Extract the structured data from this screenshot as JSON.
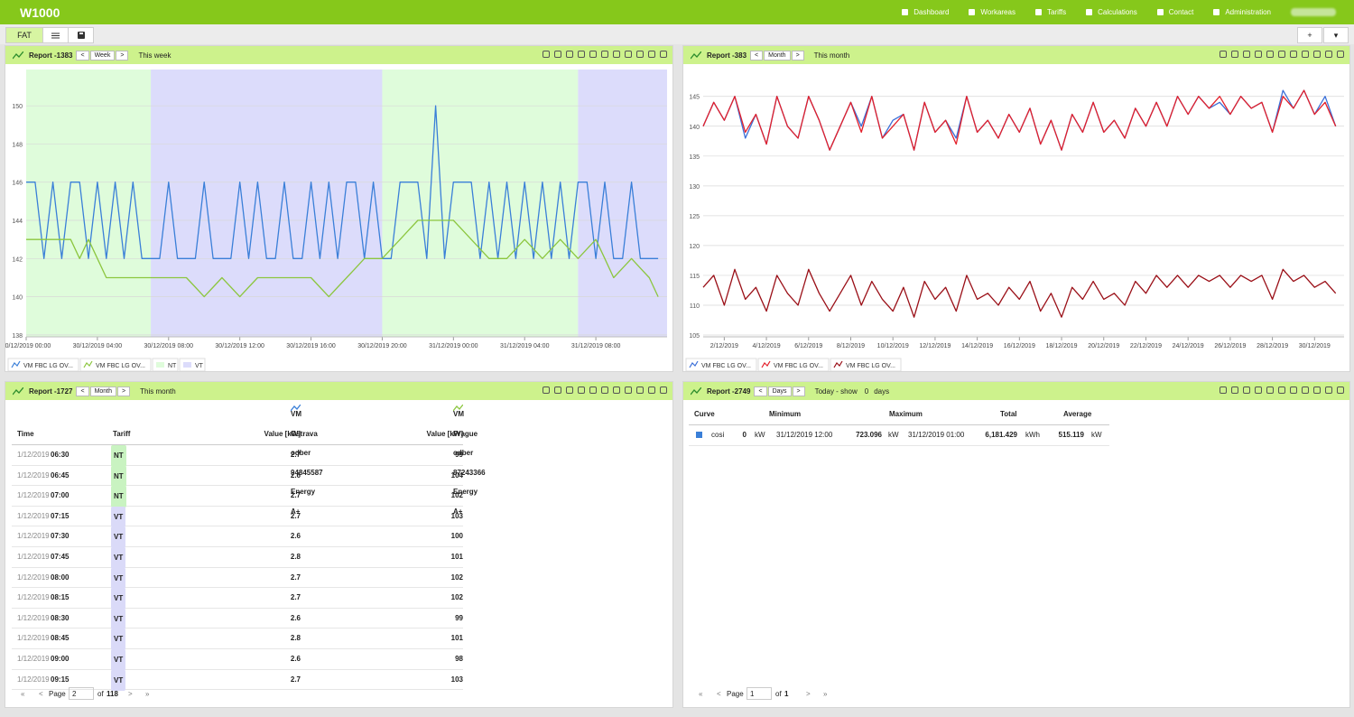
{
  "header": {
    "title": "W1000",
    "nav": [
      "Dashboard",
      "Workareas",
      "Tariffs",
      "Calculations",
      "Contact",
      "Administration"
    ]
  },
  "toolbar": {
    "tab": "FAT",
    "buttons": [
      "+",
      "▾"
    ]
  },
  "panels": [
    {
      "title": "Report -1383",
      "prev": "<",
      "period": "Week",
      "next": ">",
      "range": "This week"
    },
    {
      "title": "Report -383",
      "prev": "<",
      "period": "Month",
      "next": ">",
      "range": "This month"
    },
    {
      "title": "Report -1727",
      "prev": "<",
      "period": "Month",
      "next": ">",
      "range": "This month"
    },
    {
      "title": "Report -2749",
      "prev": "<",
      "period": "Days",
      "next": ">",
      "range": "Today - show",
      "count": "0",
      "unit": "days"
    }
  ],
  "chart_data": [
    {
      "type": "line",
      "xlim": [
        0,
        36
      ],
      "ylim": [
        137.9,
        151.9
      ],
      "yticks": [
        138,
        140,
        142,
        144,
        146,
        148,
        150
      ],
      "xticks": [
        {
          "value": 0,
          "label": "30/12/2019 00:00"
        },
        {
          "value": 4,
          "label": "30/12/2019 04:00"
        },
        {
          "value": 8,
          "label": "30/12/2019 08:00"
        },
        {
          "value": 12,
          "label": "30/12/2019 12:00"
        },
        {
          "value": 16,
          "label": "30/12/2019 16:00"
        },
        {
          "value": 20,
          "label": "30/12/2019 20:00"
        },
        {
          "value": 24,
          "label": "31/12/2019 00:00"
        },
        {
          "value": 28,
          "label": "31/12/2019 04:00"
        },
        {
          "value": 32,
          "label": "31/12/2019 08:00"
        }
      ],
      "grid": true,
      "bands": [
        {
          "from": 0,
          "to": 7,
          "color": "#dffcdb"
        },
        {
          "from": 7,
          "to": 20,
          "color": "#dcdcfb"
        },
        {
          "from": 20,
          "to": 31,
          "color": "#dffcdb"
        },
        {
          "from": 31,
          "to": 36,
          "color": "#dcdcfb"
        }
      ],
      "tariffs": [
        {
          "name": "NT",
          "color": "#dffcdb"
        },
        {
          "name": "VT",
          "color": "#dcdcfb"
        }
      ],
      "x": [
        0,
        0.5,
        1,
        1.5,
        2,
        2.5,
        3,
        3.5,
        4,
        4.5,
        5,
        5.5,
        6,
        6.5,
        7,
        7.5,
        8,
        8.5,
        9,
        9.5,
        10,
        10.5,
        11,
        11.5,
        12,
        12.5,
        13,
        13.5,
        14,
        14.5,
        15,
        15.5,
        16,
        16.5,
        17,
        17.5,
        18,
        18.5,
        19,
        19.5,
        20,
        20.5,
        21,
        21.5,
        22,
        22.5,
        23,
        23.5,
        24,
        24.5,
        25,
        25.5,
        26,
        26.5,
        27,
        27.5,
        28,
        28.5,
        29,
        29.5,
        30,
        30.5,
        31,
        31.5,
        32,
        32.5,
        33,
        33.5,
        34,
        34.5,
        35,
        35.5
      ],
      "series": [
        {
          "name": "VM FBC LG OV...",
          "color": "#3a7fd8",
          "values": [
            146,
            146,
            142,
            146,
            142,
            146,
            146,
            142,
            146,
            142,
            146,
            142,
            146,
            142,
            142,
            142,
            146,
            142,
            142,
            142,
            146,
            142,
            142,
            142,
            146,
            142,
            146,
            142,
            142,
            146,
            142,
            142,
            146,
            142,
            146,
            142,
            146,
            146,
            142,
            146,
            142,
            142,
            146,
            146,
            146,
            142,
            150,
            142,
            146,
            146,
            146,
            142,
            146,
            142,
            146,
            142,
            146,
            142,
            146,
            142,
            146,
            142,
            146,
            146,
            142,
            146,
            142,
            142,
            146,
            142,
            142,
            142
          ]
        },
        {
          "name": "VM FBC LG OV...",
          "color": "#8cc63f",
          "values": [
            143,
            143,
            143,
            143,
            143,
            143,
            142,
            143,
            142,
            141,
            141,
            141,
            141,
            141,
            141,
            141,
            141,
            141,
            141,
            140.5,
            140,
            140.5,
            141,
            140.5,
            140,
            140.5,
            141,
            141,
            141,
            141,
            141,
            141,
            141,
            140.5,
            140,
            140.5,
            141,
            141.5,
            142,
            142,
            142,
            142.5,
            143,
            143.5,
            144,
            144,
            144,
            144,
            144,
            143.5,
            143,
            142.5,
            142,
            142,
            142,
            142.5,
            143,
            142.5,
            142,
            142.5,
            143,
            142.5,
            142,
            142.5,
            143,
            142,
            141,
            141.5,
            142,
            141.5,
            141,
            140
          ]
        }
      ],
      "legend": "bottom-left"
    },
    {
      "type": "line",
      "xlim": [
        1,
        31.4
      ],
      "ylim": [
        104.7,
        149.5
      ],
      "yticks": [
        105,
        110,
        115,
        120,
        125,
        130,
        135,
        140,
        145
      ],
      "xticks": [
        {
          "value": 2,
          "label": "2/12/2019"
        },
        {
          "value": 4,
          "label": "4/12/2019"
        },
        {
          "value": 6,
          "label": "6/12/2019"
        },
        {
          "value": 8,
          "label": "8/12/2019"
        },
        {
          "value": 10,
          "label": "10/12/2019"
        },
        {
          "value": 12,
          "label": "12/12/2019"
        },
        {
          "value": 14,
          "label": "14/12/2019"
        },
        {
          "value": 16,
          "label": "16/12/2019"
        },
        {
          "value": 18,
          "label": "18/12/2019"
        },
        {
          "value": 20,
          "label": "20/12/2019"
        },
        {
          "value": 22,
          "label": "22/12/2019"
        },
        {
          "value": 24,
          "label": "24/12/2019"
        },
        {
          "value": 26,
          "label": "26/12/2019"
        },
        {
          "value": 28,
          "label": "28/12/2019"
        },
        {
          "value": 30,
          "label": "30/12/2019"
        }
      ],
      "grid": true,
      "x": [
        1,
        1.5,
        2,
        2.5,
        3,
        3.5,
        4,
        4.5,
        5,
        5.5,
        6,
        6.5,
        7,
        7.5,
        8,
        8.5,
        9,
        9.5,
        10,
        10.5,
        11,
        11.5,
        12,
        12.5,
        13,
        13.5,
        14,
        14.5,
        15,
        15.5,
        16,
        16.5,
        17,
        17.5,
        18,
        18.5,
        19,
        19.5,
        20,
        20.5,
        21,
        21.5,
        22,
        22.5,
        23,
        23.5,
        24,
        24.5,
        25,
        25.5,
        26,
        26.5,
        27,
        27.5,
        28,
        28.5,
        29,
        29.5,
        30,
        30.5,
        31
      ],
      "series": [
        {
          "name": "VM FBC LG OV...",
          "color": "#3a6fd8",
          "values": [
            140,
            144,
            141,
            145,
            138,
            142,
            137,
            145,
            140,
            138,
            145,
            141,
            136,
            140,
            144,
            140,
            145,
            138,
            141,
            142,
            136,
            144,
            139,
            141,
            138,
            145,
            139,
            141,
            138,
            142,
            139,
            143,
            137,
            141,
            136,
            142,
            139,
            144,
            139,
            141,
            138,
            143,
            140,
            144,
            140,
            145,
            142,
            145,
            143,
            144,
            142,
            145,
            143,
            144,
            139,
            146,
            143,
            146,
            142,
            145,
            140
          ]
        },
        {
          "name": "VM FBC LG OV...",
          "color": "#e3202b",
          "values": [
            140,
            144,
            141,
            145,
            139,
            142,
            137,
            145,
            140,
            138,
            145,
            141,
            136,
            140,
            144,
            139,
            145,
            138,
            140,
            142,
            136,
            144,
            139,
            141,
            137,
            145,
            139,
            141,
            138,
            142,
            139,
            143,
            137,
            141,
            136,
            142,
            139,
            144,
            139,
            141,
            138,
            143,
            140,
            144,
            140,
            145,
            142,
            145,
            143,
            145,
            142,
            145,
            143,
            144,
            139,
            145,
            143,
            146,
            142,
            144,
            140
          ]
        },
        {
          "name": "VM FBC LG OV...",
          "color": "#9a0f17",
          "values": [
            113,
            115,
            110,
            116,
            111,
            113,
            109,
            115,
            112,
            110,
            116,
            112,
            109,
            112,
            115,
            110,
            114,
            111,
            109,
            113,
            108,
            114,
            111,
            113,
            109,
            115,
            111,
            112,
            110,
            113,
            111,
            114,
            109,
            112,
            108,
            113,
            111,
            114,
            111,
            112,
            110,
            114,
            112,
            115,
            113,
            115,
            113,
            115,
            114,
            115,
            113,
            115,
            114,
            115,
            111,
            116,
            114,
            115,
            113,
            114,
            112
          ]
        }
      ],
      "legend": "bottom-left"
    }
  ],
  "table": {
    "series_headers": [
      "VM Ostrava odber 94845587 Energy A+",
      "VM Prague odber 87243366 Energy A+"
    ],
    "columns": [
      "Time",
      "Tariff",
      "Value [kW]",
      "Value [kW]"
    ],
    "rows": [
      [
        "1/12/2019",
        "06:30",
        "NT",
        "2.7",
        "99"
      ],
      [
        "1/12/2019",
        "06:45",
        "NT",
        "2.6",
        "104"
      ],
      [
        "1/12/2019",
        "07:00",
        "NT",
        "2.7",
        "102"
      ],
      [
        "1/12/2019",
        "07:15",
        "VT",
        "2.7",
        "103"
      ],
      [
        "1/12/2019",
        "07:30",
        "VT",
        "2.6",
        "100"
      ],
      [
        "1/12/2019",
        "07:45",
        "VT",
        "2.8",
        "101"
      ],
      [
        "1/12/2019",
        "08:00",
        "VT",
        "2.7",
        "102"
      ],
      [
        "1/12/2019",
        "08:15",
        "VT",
        "2.7",
        "102"
      ],
      [
        "1/12/2019",
        "08:30",
        "VT",
        "2.6",
        "99"
      ],
      [
        "1/12/2019",
        "08:45",
        "VT",
        "2.8",
        "101"
      ],
      [
        "1/12/2019",
        "09:00",
        "VT",
        "2.6",
        "98"
      ],
      [
        "1/12/2019",
        "09:15",
        "VT",
        "2.7",
        "103"
      ]
    ],
    "pager": {
      "first": "«",
      "prev": "<",
      "label": "Page",
      "page": "2",
      "of": "of",
      "total": "118",
      "next": ">",
      "last": "»"
    }
  },
  "summary": {
    "columns": [
      "Curve",
      "Minimum",
      "Maximum",
      "Total",
      "Average"
    ],
    "rows": [
      [
        "cosi",
        "0",
        "kW",
        "31/12/2019 12:00",
        "723.096",
        "kW",
        "31/12/2019 01:00",
        "6,181.429",
        "kWh",
        "515.119",
        "kW"
      ]
    ],
    "pager": {
      "first": "«",
      "prev": "<",
      "label": "Page",
      "page": "1",
      "of": "of",
      "total": "1",
      "next": ">",
      "last": "»"
    }
  }
}
